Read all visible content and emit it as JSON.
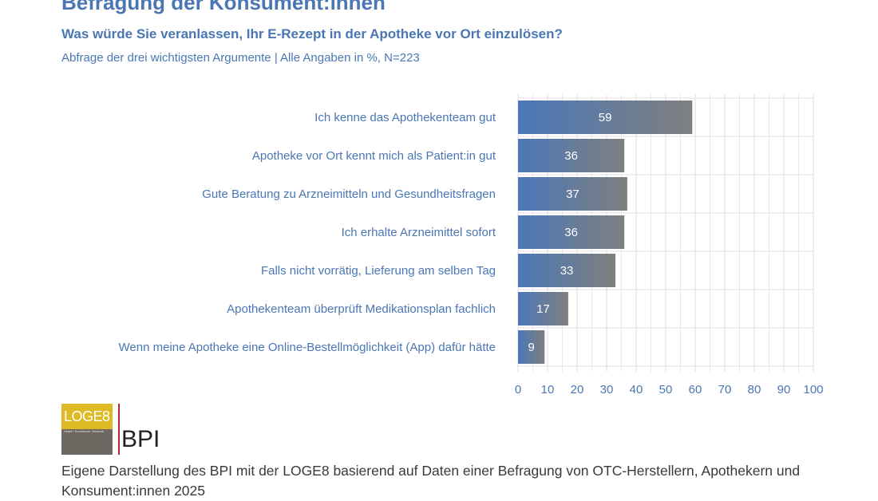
{
  "header": {
    "title": "Befragung der Konsument:innen",
    "subtitle": "Was würde Sie veranlassen, Ihr E-Rezept in der Apotheke vor Ort einzulösen?",
    "note": "Abfrage der drei wichtigsten Argumente | Alle Angaben in %, N=223"
  },
  "chart_data": {
    "type": "bar",
    "orientation": "horizontal",
    "categories": [
      "Ich kenne das Apothekenteam gut",
      "Apotheke vor Ort kennt mich als Patient:in gut",
      "Gute Beratung zu Arzneimitteln und Gesundheitsfragen",
      "Ich erhalte Arzneimittel sofort",
      "Falls nicht vorrätig, Lieferung am selben Tag",
      "Apothekenteam überprüft Medikationsplan fachlich",
      "Wenn meine Apotheke eine Online-Bestellmöglichkeit (App) dafür hätte"
    ],
    "values": [
      59,
      36,
      37,
      36,
      33,
      17,
      9
    ],
    "xlim": [
      0,
      100
    ],
    "xticks": [
      0,
      10,
      20,
      30,
      40,
      50,
      60,
      70,
      80,
      90,
      100
    ],
    "grid": true,
    "data_labels": true,
    "colors": {
      "bar_start": "#4a78b8",
      "bar_end": "#7f7f7f",
      "grid": "#e2e2e6",
      "text": "#4a77b4"
    }
  },
  "logos": {
    "loge8": {
      "name": "LOGE8",
      "tagline": "Health. Excellence. Network."
    },
    "bpi": {
      "name": "BPI"
    }
  },
  "footer": {
    "source": "Eigene Darstellung des BPI mit der LOGE8 basierend auf Daten einer Befragung von OTC-Herstellern, Apothekern und Konsument:innen 2025"
  }
}
